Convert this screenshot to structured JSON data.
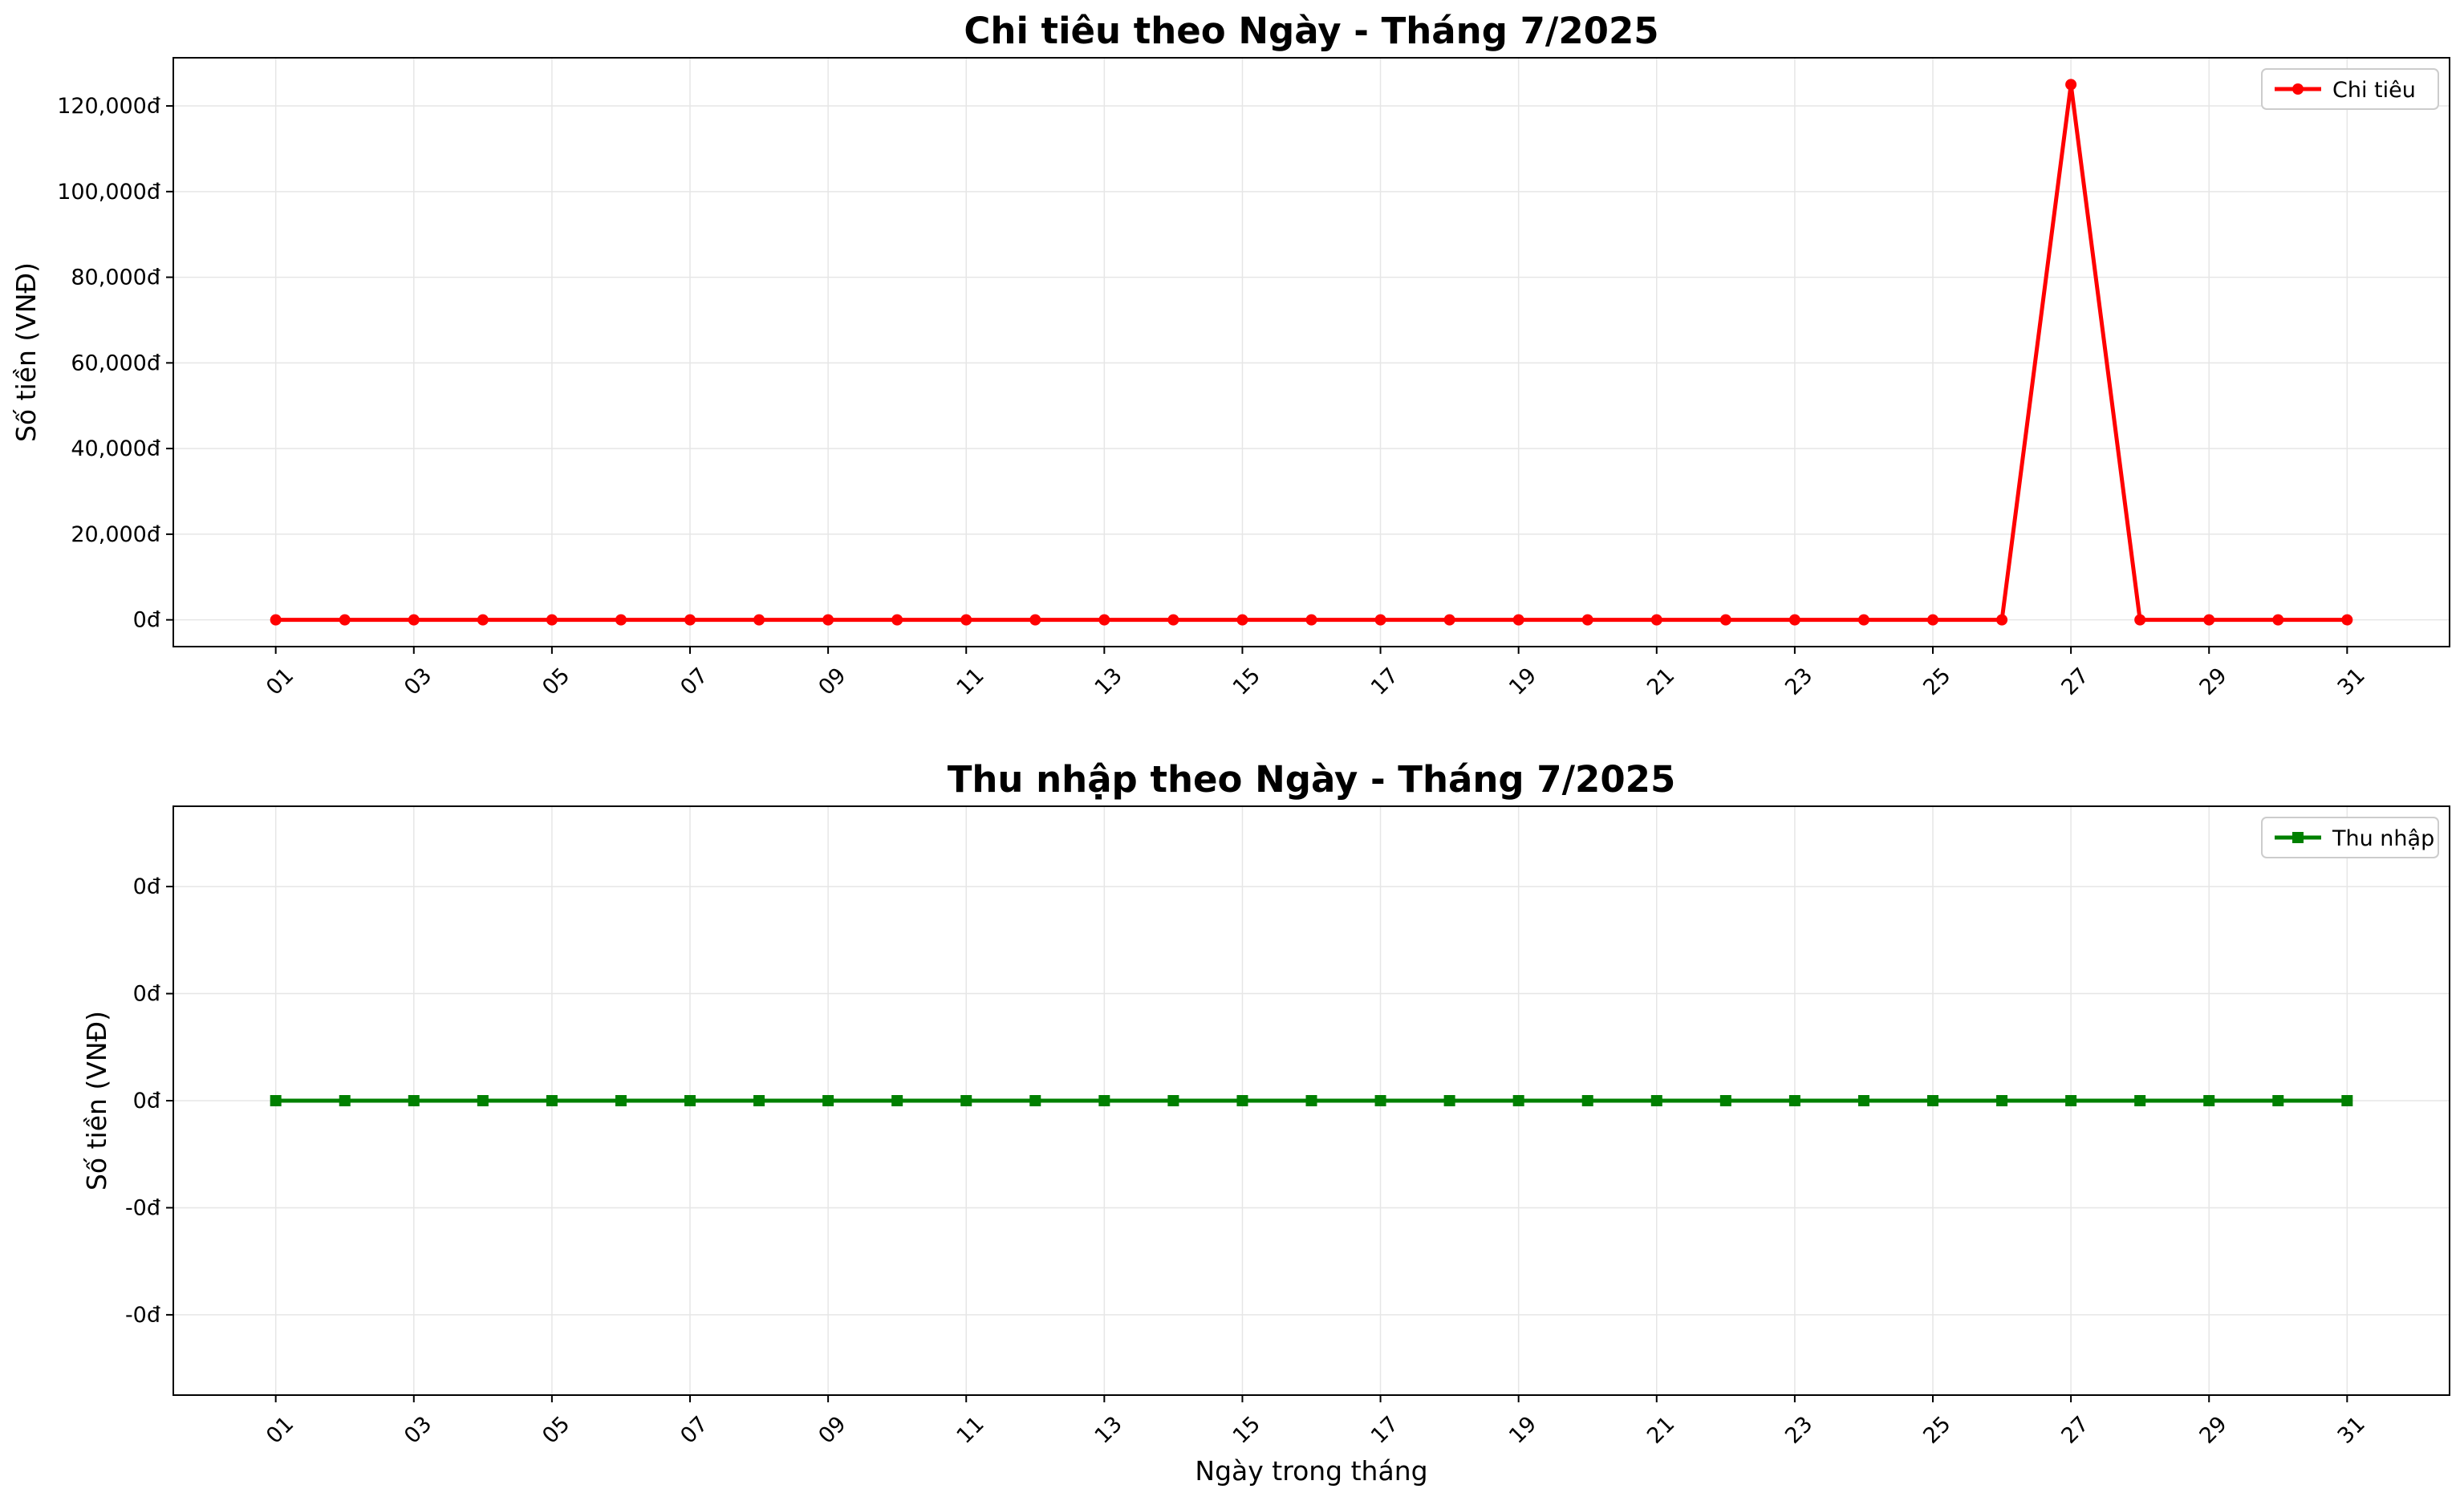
{
  "chart_data": [
    {
      "type": "line",
      "title": "Chi tiêu theo Ngày - Tháng 7/2025",
      "ylabel": "Số tiền (VNĐ)",
      "xlabel": "",
      "x": [
        "01",
        "02",
        "03",
        "04",
        "05",
        "06",
        "07",
        "08",
        "09",
        "10",
        "11",
        "12",
        "13",
        "14",
        "15",
        "16",
        "17",
        "18",
        "19",
        "20",
        "21",
        "22",
        "23",
        "24",
        "25",
        "26",
        "27",
        "28",
        "29",
        "30",
        "31"
      ],
      "x_tick_labels": [
        "01",
        "03",
        "05",
        "07",
        "09",
        "11",
        "13",
        "15",
        "17",
        "19",
        "21",
        "23",
        "25",
        "27",
        "29",
        "31"
      ],
      "y_tick_labels": [
        "0đ",
        "20,000đ",
        "40,000đ",
        "60,000đ",
        "80,000đ",
        "100,000đ",
        "120,000đ"
      ],
      "y_tick_values": [
        0,
        20000,
        40000,
        60000,
        80000,
        100000,
        120000
      ],
      "ylim": [
        -6250,
        131250
      ],
      "grid": true,
      "legend_position": "top-right",
      "series": [
        {
          "name": "Chi tiêu",
          "color": "#ff0000",
          "marker": "circle",
          "values": [
            0,
            0,
            0,
            0,
            0,
            0,
            0,
            0,
            0,
            0,
            0,
            0,
            0,
            0,
            0,
            0,
            0,
            0,
            0,
            0,
            0,
            0,
            0,
            0,
            0,
            0,
            125000,
            0,
            0,
            0,
            0
          ]
        }
      ]
    },
    {
      "type": "line",
      "title": "Thu nhập theo Ngày - Tháng 7/2025",
      "ylabel": "Số tiền (VNĐ)",
      "xlabel": "Ngày trong tháng",
      "x": [
        "01",
        "02",
        "03",
        "04",
        "05",
        "06",
        "07",
        "08",
        "09",
        "10",
        "11",
        "12",
        "13",
        "14",
        "15",
        "16",
        "17",
        "18",
        "19",
        "20",
        "21",
        "22",
        "23",
        "24",
        "25",
        "26",
        "27",
        "28",
        "29",
        "30",
        "31"
      ],
      "x_tick_labels": [
        "01",
        "03",
        "05",
        "07",
        "09",
        "11",
        "13",
        "15",
        "17",
        "19",
        "21",
        "23",
        "25",
        "27",
        "29",
        "31"
      ],
      "y_tick_labels": [
        "-0đ",
        "-0đ",
        "0đ",
        "0đ",
        "0đ"
      ],
      "y_tick_values": [
        -0.04,
        -0.02,
        0,
        0.02,
        0.04
      ],
      "ylim": [
        -0.055,
        0.055
      ],
      "grid": true,
      "legend_position": "top-right",
      "series": [
        {
          "name": "Thu nhập",
          "color": "#008000",
          "marker": "square",
          "values": [
            0,
            0,
            0,
            0,
            0,
            0,
            0,
            0,
            0,
            0,
            0,
            0,
            0,
            0,
            0,
            0,
            0,
            0,
            0,
            0,
            0,
            0,
            0,
            0,
            0,
            0,
            0,
            0,
            0,
            0,
            0
          ]
        }
      ]
    }
  ]
}
